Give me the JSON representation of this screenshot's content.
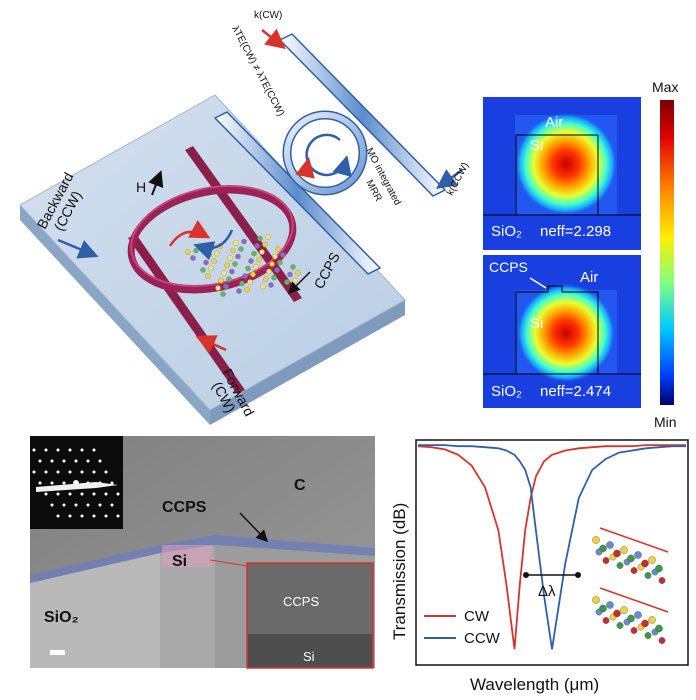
{
  "device": {
    "backward_label": "Backward",
    "backward_sub": "(CCW)",
    "forward_label": "Forward",
    "forward_sub": "(CW)",
    "field_label": "H",
    "ccps_label": "CCPS"
  },
  "mrr": {
    "k_cw": "k(CW)",
    "k_ccw": "k(CCW)",
    "lambda_relation": "λTE(CW) ≠ λTE(CCW)",
    "mo_label_1": "MO integrated",
    "mo_label_2": "MRR"
  },
  "mode_top": {
    "air": "Air",
    "si": "Si",
    "sio2": "SiO₂",
    "neff": "neff=2.298"
  },
  "mode_bottom": {
    "ccps": "CCPS",
    "air": "Air",
    "si": "Si",
    "sio2": "SiO₂",
    "neff": "neff=2.474"
  },
  "colorbar": {
    "max": "Max",
    "min": "Min"
  },
  "tem": {
    "c": "C",
    "ccps": "CCPS",
    "si": "Si",
    "sio2": "SiO₂",
    "inset_ccps": "CCPS",
    "inset_si": "Si"
  },
  "colors": {
    "cw": "#d9342b",
    "ccw": "#2f5fa8",
    "waveguide": "#8a1f4a"
  },
  "chart_data": {
    "type": "line",
    "title": "",
    "xlabel": "Wavelength (μm)",
    "ylabel": "Transmission (dB)",
    "annotation": "Δλ",
    "grid": false,
    "legend_position": "bottom-left",
    "x": [
      0,
      0.05,
      0.1,
      0.15,
      0.2,
      0.25,
      0.3,
      0.33,
      0.36,
      0.38,
      0.4,
      0.42,
      0.44,
      0.47,
      0.5,
      0.55,
      0.6,
      0.65,
      0.7,
      0.75,
      0.8,
      0.85,
      0.9,
      0.95,
      1.0
    ],
    "series": [
      {
        "name": "CW",
        "color": "#d9342b",
        "values": [
          0.99,
          0.985,
          0.975,
          0.95,
          0.9,
          0.8,
          0.6,
          0.35,
          0.05,
          0.35,
          0.6,
          0.75,
          0.85,
          0.92,
          0.95,
          0.97,
          0.98,
          0.985,
          0.99,
          0.99,
          0.99,
          0.995,
          0.995,
          0.995,
          0.995
        ]
      },
      {
        "name": "CCW",
        "color": "#2f5fa8",
        "values": [
          0.995,
          0.995,
          0.995,
          0.99,
          0.99,
          0.985,
          0.98,
          0.97,
          0.95,
          0.92,
          0.88,
          0.8,
          0.6,
          0.3,
          0.05,
          0.45,
          0.75,
          0.88,
          0.93,
          0.96,
          0.97,
          0.98,
          0.985,
          0.99,
          0.99
        ]
      }
    ]
  }
}
